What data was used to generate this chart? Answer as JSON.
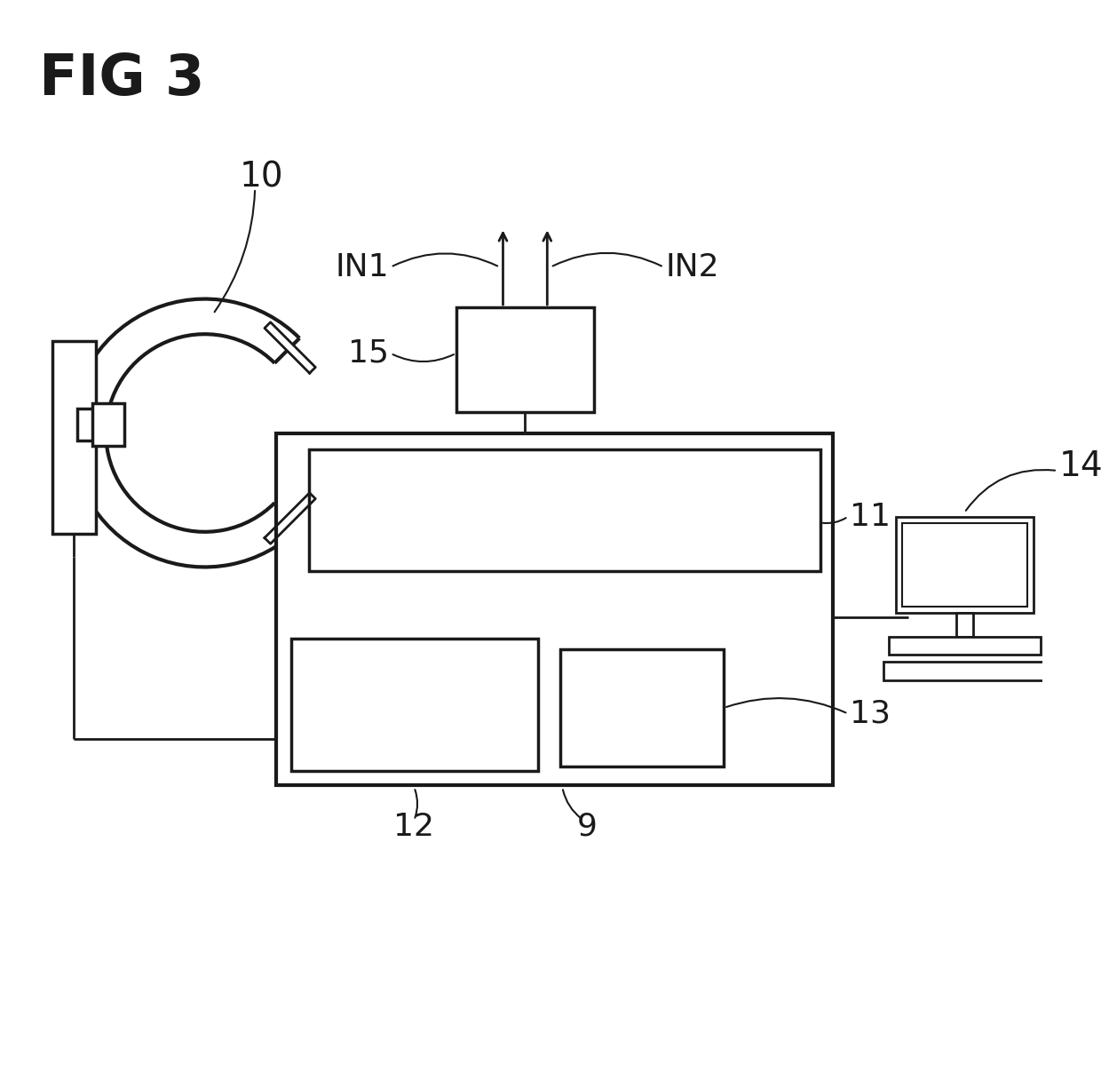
{
  "bg_color": "#ffffff",
  "line_color": "#1a1a1a",
  "fig_width": 12.4,
  "fig_height": 12.25,
  "lw": 2.0,
  "labels": {
    "fig_title": "FIG 3",
    "label_10": "10",
    "label_11": "11",
    "label_12": "12",
    "label_13": "13",
    "label_14": "14",
    "label_15": "15",
    "label_9": "9",
    "label_IN1": "IN1",
    "label_IN2": "IN2"
  },
  "fontsize_title": 46,
  "fontsize_label": 26
}
